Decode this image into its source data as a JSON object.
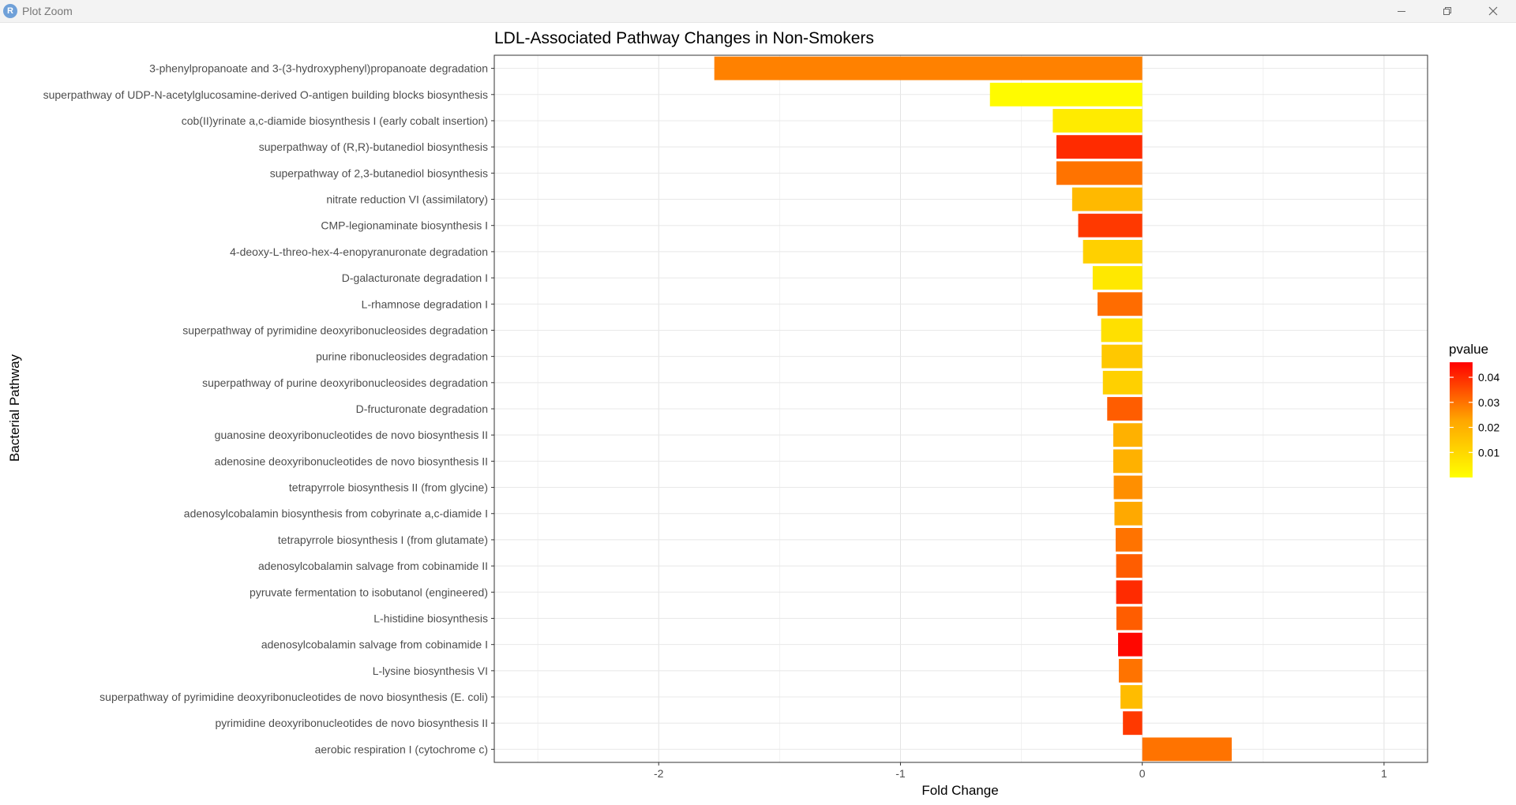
{
  "window": {
    "title": "Plot Zoom",
    "app_icon_letter": "R"
  },
  "chart_data": {
    "type": "bar",
    "orientation": "horizontal",
    "title": "LDL-Associated Pathway Changes in Non-Smokers",
    "xlabel": "Fold Change",
    "ylabel": "Bacterial Pathway",
    "xlim": [
      -2.68,
      1.18
    ],
    "xticks": [
      -2,
      -1,
      0,
      1
    ],
    "grid": true,
    "legend": {
      "title": "pvalue",
      "position": "right",
      "ticks": [
        0.01,
        0.02,
        0.03,
        0.04
      ],
      "range": [
        0.0,
        0.046
      ],
      "low_color": "#ffff00",
      "high_color": "#ff0000"
    },
    "categories": [
      "3-phenylpropanoate and 3-(3-hydroxyphenyl)propanoate degradation",
      "superpathway of UDP-N-acetylglucosamine-derived O-antigen building blocks biosynthesis",
      "cob(II)yrinate a,c-diamide biosynthesis I (early cobalt insertion)",
      "superpathway of (R,R)-butanediol biosynthesis",
      "superpathway of 2,3-butanediol biosynthesis",
      "nitrate reduction VI (assimilatory)",
      "CMP-legionaminate biosynthesis I",
      "4-deoxy-L-threo-hex-4-enopyranuronate degradation",
      "D-galacturonate degradation I",
      "L-rhamnose degradation I",
      "superpathway of pyrimidine deoxyribonucleosides degradation",
      "purine ribonucleosides degradation",
      "superpathway of purine deoxyribonucleosides degradation",
      "D-fructuronate degradation",
      "guanosine deoxyribonucleotides de novo biosynthesis II",
      "adenosine deoxyribonucleotides de novo biosynthesis II",
      "tetrapyrrole biosynthesis II (from glycine)",
      "adenosylcobalamin biosynthesis from cobyrinate a,c-diamide I",
      "tetrapyrrole biosynthesis I (from glutamate)",
      "adenosylcobalamin salvage from cobinamide II",
      "pyruvate fermentation to isobutanol (engineered)",
      "L-histidine biosynthesis",
      "adenosylcobalamin salvage from cobinamide I",
      "L-lysine biosynthesis VI",
      "superpathway of pyrimidine deoxyribonucleotides de novo biosynthesis (E. coli)",
      "pyrimidine deoxyribonucleotides de novo biosynthesis II",
      "aerobic respiration I (cytochrome c)"
    ],
    "values": [
      -1.77,
      -0.63,
      -0.37,
      -0.355,
      -0.355,
      -0.29,
      -0.265,
      -0.245,
      -0.205,
      -0.185,
      -0.17,
      -0.168,
      -0.163,
      -0.145,
      -0.12,
      -0.12,
      -0.118,
      -0.115,
      -0.11,
      -0.108,
      -0.108,
      -0.107,
      -0.1,
      -0.097,
      -0.09,
      -0.08,
      0.37
    ],
    "pvalues": [
      0.028,
      0.001,
      0.005,
      0.04,
      0.03,
      0.018,
      0.038,
      0.012,
      0.006,
      0.031,
      0.008,
      0.014,
      0.012,
      0.033,
      0.02,
      0.02,
      0.026,
      0.022,
      0.03,
      0.033,
      0.04,
      0.033,
      0.045,
      0.03,
      0.017,
      0.038,
      0.03
    ]
  }
}
